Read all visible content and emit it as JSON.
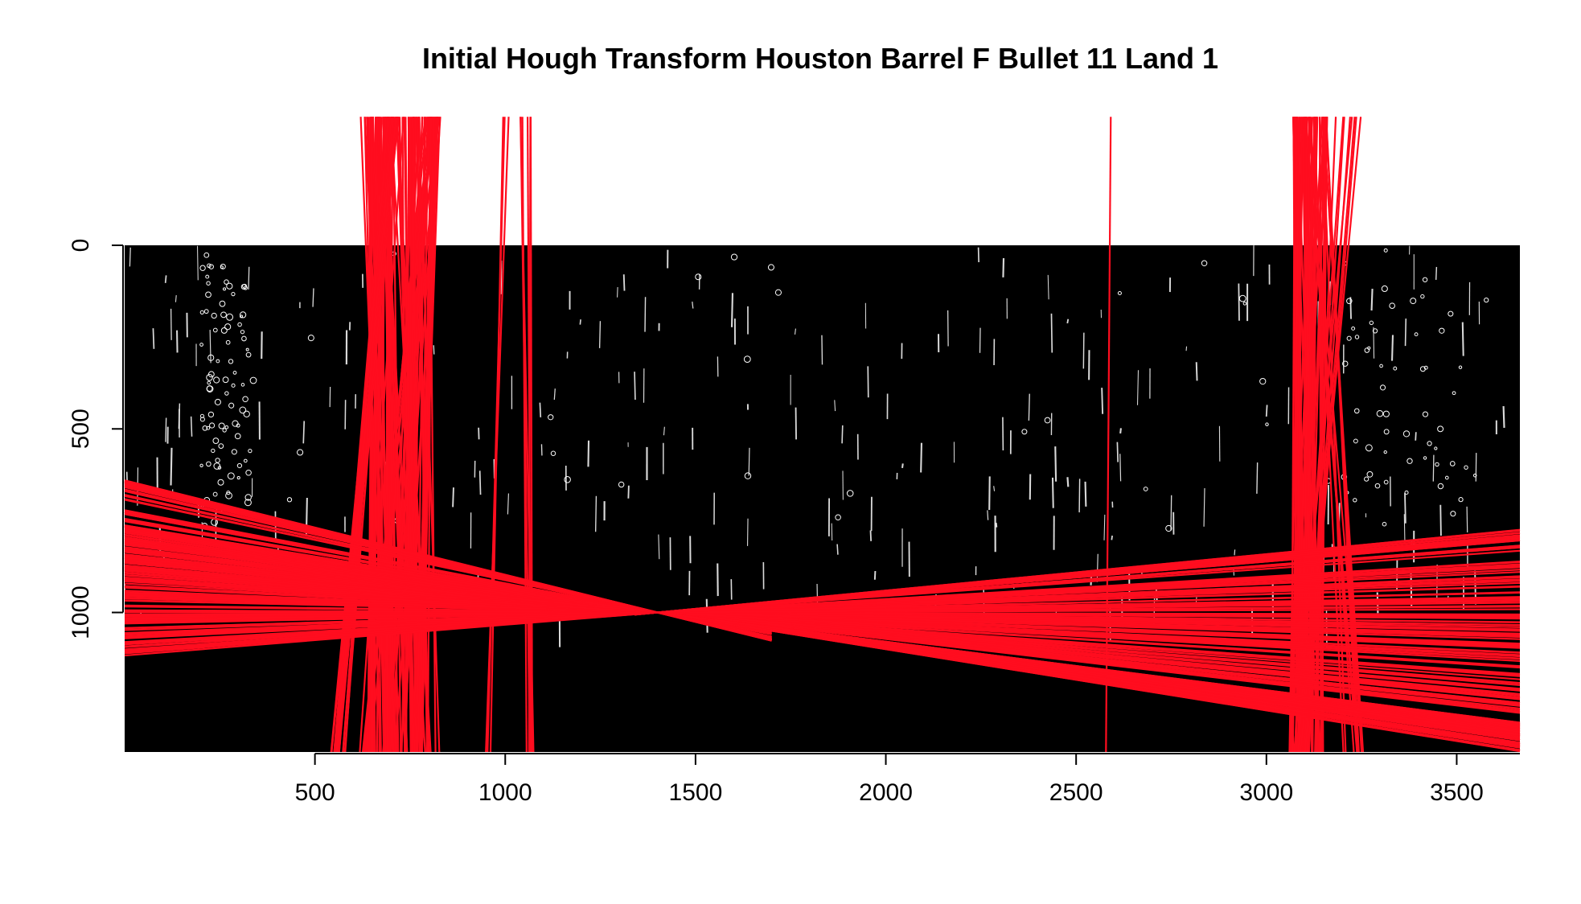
{
  "chart_data": {
    "type": "image-with-line-overlay",
    "title": "Initial Hough Transform Houston Barrel F Bullet 11 Land 1",
    "xlabel": "",
    "ylabel": "",
    "xlim": [
      0,
      3666
    ],
    "ylim": [
      1380,
      0
    ],
    "image_extent": {
      "x": [
        0,
        3666
      ],
      "y": [
        0,
        1380
      ]
    },
    "image_background": "#000000",
    "x_ticks": [
      500,
      1000,
      1500,
      2000,
      2500,
      3000,
      3500
    ],
    "x_tick_labels": [
      "500",
      "1000",
      "1500",
      "2000",
      "2500",
      "3000",
      "3500"
    ],
    "y_ticks": [
      0,
      500,
      1000
    ],
    "y_tick_labels": [
      "0",
      "500",
      "1000"
    ],
    "line_color": "#ff0d1f",
    "clip_y_range": [
      -350,
      1380
    ],
    "line_groups": [
      {
        "kind": "steep",
        "count": 60,
        "top": [
          [
            650,
            760
          ],
          [
            740,
            830
          ]
        ],
        "bottom": [
          [
            600,
            760
          ],
          [
            720,
            830
          ]
        ]
      },
      {
        "kind": "steep",
        "count": 30,
        "top": [
          [
            620,
            700
          ]
        ],
        "bottom": [
          [
            640,
            720
          ]
        ]
      },
      {
        "kind": "steep",
        "count": 20,
        "top": [
          [
            690,
            720
          ]
        ],
        "bottom": [
          [
            540,
            580
          ]
        ]
      },
      {
        "kind": "steep",
        "count": 12,
        "top": [
          [
            800,
            830
          ]
        ],
        "bottom": [
          [
            760,
            790
          ]
        ]
      },
      {
        "kind": "steep",
        "count": 3,
        "top": [
          [
            990,
            1010
          ]
        ],
        "bottom": [
          [
            940,
            965
          ]
        ]
      },
      {
        "kind": "steep",
        "count": 6,
        "top": [
          [
            1040,
            1070
          ]
        ],
        "bottom": [
          [
            1050,
            1080
          ]
        ]
      },
      {
        "kind": "steep",
        "count": 1,
        "top": [
          [
            2590,
            2592
          ]
        ],
        "bottom": [
          [
            2578,
            2582
          ]
        ]
      },
      {
        "kind": "steep",
        "count": 50,
        "top": [
          [
            3070,
            3160
          ]
        ],
        "bottom": [
          [
            3060,
            3150
          ]
        ]
      },
      {
        "kind": "steep",
        "count": 8,
        "top": [
          [
            3180,
            3250
          ]
        ],
        "bottom": [
          [
            3070,
            3120
          ]
        ]
      },
      {
        "kind": "steep",
        "count": 10,
        "top": [
          [
            3100,
            3160
          ]
        ],
        "bottom": [
          [
            3200,
            3260
          ]
        ]
      },
      {
        "kind": "converge",
        "count": 140,
        "pivot": [
          1400,
          1000
        ],
        "left_y": [
          720,
          1120
        ]
      },
      {
        "kind": "converge",
        "count": 25,
        "pivot": [
          1400,
          1000
        ],
        "left_y": [
          640,
          700
        ]
      },
      {
        "kind": "fan",
        "count": 110,
        "pivot": [
          1400,
          1000
        ],
        "right_y": [
          770,
          1290
        ]
      },
      {
        "kind": "fan",
        "count": 60,
        "pivot": [
          1400,
          1000
        ],
        "right_y": [
          1300,
          1380
        ]
      }
    ]
  }
}
